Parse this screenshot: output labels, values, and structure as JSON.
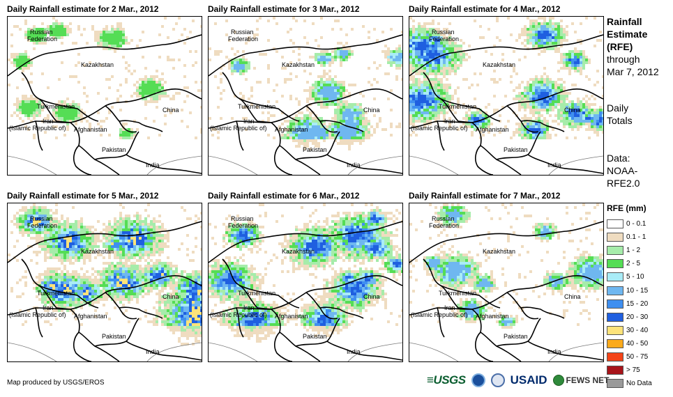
{
  "panels": [
    {
      "title": "Daily Rainfall estimate for 2 Mar., 2012",
      "intensity": 1
    },
    {
      "title": "Daily Rainfall estimate for 3 Mar., 2012",
      "intensity": 2
    },
    {
      "title": "Daily Rainfall estimate for 4 Mar., 2012",
      "intensity": 3
    },
    {
      "title": "Daily Rainfall estimate for 5 Mar., 2012",
      "intensity": 4
    },
    {
      "title": "Daily Rainfall estimate for 6 Mar., 2012",
      "intensity": 3
    },
    {
      "title": "Daily Rainfall estimate for 7 Mar., 2012",
      "intensity": 2
    }
  ],
  "map_labels": {
    "russia_1": "Russian",
    "russia_2": "Federation",
    "kazakhstan": "Kazakhstan",
    "turkmenistan": "Turkmenistan",
    "iran_1": "Iran",
    "iran_2": "(Islamic Republic of)",
    "afghanistan": "Afghanistan",
    "pakistan": "Pakistan",
    "china": "China",
    "india": "India"
  },
  "side": {
    "line1": "Rainfall",
    "line2": "Estimate",
    "line3": "(RFE)",
    "line4": "through",
    "line5": "Mar 7, 2012",
    "line6": "Daily",
    "line7": "Totals",
    "line8": "Data:",
    "line9": "NOAA-",
    "line10": "RFE2.0"
  },
  "legend": {
    "title": "RFE (mm)",
    "items": [
      {
        "label": "0 - 0.1",
        "color": "#ffffff"
      },
      {
        "label": "0.1 - 1",
        "color": "#efdcc0"
      },
      {
        "label": "1 - 2",
        "color": "#a6ecaa"
      },
      {
        "label": "2 - 5",
        "color": "#55dd55"
      },
      {
        "label": "5 - 10",
        "color": "#a9ecf7"
      },
      {
        "label": "10 - 15",
        "color": "#6fb7f0"
      },
      {
        "label": "15 - 20",
        "color": "#3f8ff0"
      },
      {
        "label": "20 - 30",
        "color": "#1f5fe0"
      },
      {
        "label": "30 - 40",
        "color": "#fde37a"
      },
      {
        "label": "40 - 50",
        "color": "#fbaa1c"
      },
      {
        "label": "50 - 75",
        "color": "#f44418"
      },
      {
        "label": "> 75",
        "color": "#a8141a"
      },
      {
        "label": "No Data",
        "color": "#9a9a9a"
      }
    ]
  },
  "credit": "Map produced by USGS/EROS",
  "logos": {
    "usgs": "≡USGS",
    "usaid": "USAID",
    "fews": "FEWS NET"
  }
}
